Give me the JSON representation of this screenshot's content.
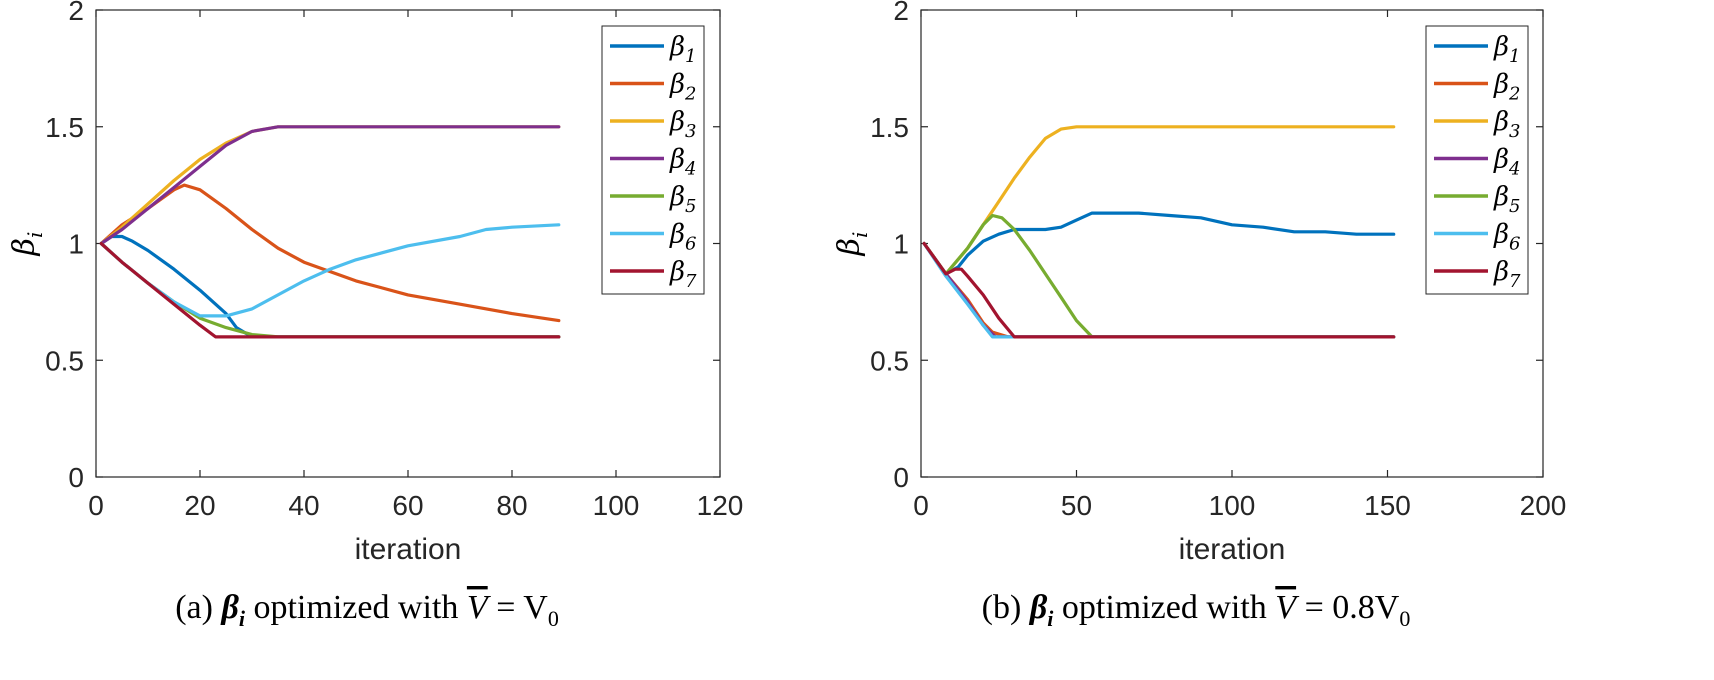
{
  "chart_data": [
    {
      "type": "line",
      "caption": {
        "prefix": "(a)",
        "symbol": "β",
        "symbol_sub": "i",
        "text": " optimized with ",
        "vbar": "V",
        "rhs": " = V",
        "rhs_sub": "0"
      },
      "xlabel": "iteration",
      "ylabel": {
        "symbol": "β",
        "sub": "i"
      },
      "xlim": [
        0,
        120
      ],
      "ylim": [
        0,
        2
      ],
      "xticks": [
        "0",
        "20",
        "40",
        "60",
        "80",
        "100",
        "120"
      ],
      "yticks": [
        "0",
        "0.5",
        "1",
        "1.5",
        "2"
      ],
      "legend_position": "top-right",
      "series": [
        {
          "name": "β1",
          "sub": "1",
          "color": "#0072BD",
          "x": [
            1,
            3,
            5,
            7,
            10,
            15,
            20,
            25,
            27,
            30,
            40,
            60,
            89
          ],
          "y": [
            1.0,
            1.03,
            1.03,
            1.01,
            0.97,
            0.89,
            0.8,
            0.7,
            0.64,
            0.6,
            0.6,
            0.6,
            0.6
          ]
        },
        {
          "name": "β2",
          "sub": "2",
          "color": "#D95319",
          "x": [
            1,
            5,
            10,
            15,
            17,
            20,
            25,
            30,
            35,
            40,
            50,
            60,
            70,
            80,
            89
          ],
          "y": [
            1.0,
            1.08,
            1.15,
            1.23,
            1.25,
            1.23,
            1.15,
            1.06,
            0.98,
            0.92,
            0.84,
            0.78,
            0.74,
            0.7,
            0.67
          ]
        },
        {
          "name": "β3",
          "sub": "3",
          "color": "#EDB120",
          "x": [
            1,
            5,
            10,
            15,
            20,
            25,
            30,
            35,
            40,
            60,
            89
          ],
          "y": [
            1.0,
            1.07,
            1.17,
            1.27,
            1.36,
            1.43,
            1.48,
            1.5,
            1.5,
            1.5,
            1.5
          ]
        },
        {
          "name": "β4",
          "sub": "4",
          "color": "#7E2F8E",
          "x": [
            1,
            5,
            10,
            15,
            20,
            25,
            30,
            35,
            40,
            60,
            89
          ],
          "y": [
            1.0,
            1.06,
            1.15,
            1.24,
            1.33,
            1.42,
            1.48,
            1.5,
            1.5,
            1.5,
            1.5
          ]
        },
        {
          "name": "β5",
          "sub": "5",
          "color": "#77AC30",
          "x": [
            1,
            5,
            10,
            15,
            20,
            25,
            30,
            35,
            40,
            60,
            89
          ],
          "y": [
            1.0,
            0.92,
            0.83,
            0.75,
            0.68,
            0.64,
            0.61,
            0.6,
            0.6,
            0.6,
            0.6
          ]
        },
        {
          "name": "β6",
          "sub": "6",
          "color": "#4DBEEE",
          "x": [
            1,
            5,
            10,
            15,
            20,
            25,
            30,
            35,
            40,
            45,
            50,
            60,
            70,
            75,
            80,
            89
          ],
          "y": [
            1.0,
            0.92,
            0.83,
            0.75,
            0.69,
            0.69,
            0.72,
            0.78,
            0.84,
            0.89,
            0.93,
            0.99,
            1.03,
            1.06,
            1.07,
            1.08
          ]
        },
        {
          "name": "β7",
          "sub": "7",
          "color": "#A2142F",
          "x": [
            1,
            5,
            10,
            15,
            20,
            23,
            25,
            40,
            60,
            89
          ],
          "y": [
            1.0,
            0.92,
            0.83,
            0.74,
            0.65,
            0.6,
            0.6,
            0.6,
            0.6,
            0.6
          ]
        }
      ]
    },
    {
      "type": "line",
      "caption": {
        "prefix": "(b)",
        "symbol": "β",
        "symbol_sub": "i",
        "text": " optimized with ",
        "vbar": "V",
        "rhs": " = 0.8V",
        "rhs_sub": "0"
      },
      "xlabel": "iteration",
      "ylabel": {
        "symbol": "β",
        "sub": "i"
      },
      "xlim": [
        0,
        200
      ],
      "ylim": [
        0,
        2
      ],
      "xticks": [
        "0",
        "50",
        "100",
        "150",
        "200"
      ],
      "yticks": [
        "0",
        "0.5",
        "1",
        "1.5",
        "2"
      ],
      "legend_position": "top-right",
      "series": [
        {
          "name": "β1",
          "sub": "1",
          "color": "#0072BD",
          "x": [
            1,
            8,
            12,
            15,
            20,
            25,
            30,
            40,
            45,
            50,
            55,
            60,
            70,
            80,
            90,
            100,
            110,
            120,
            130,
            140,
            152
          ],
          "y": [
            1.0,
            0.87,
            0.9,
            0.95,
            1.01,
            1.04,
            1.06,
            1.06,
            1.07,
            1.1,
            1.13,
            1.13,
            1.13,
            1.12,
            1.11,
            1.08,
            1.07,
            1.05,
            1.05,
            1.04,
            1.04
          ]
        },
        {
          "name": "β2",
          "sub": "2",
          "color": "#D95319",
          "x": [
            1,
            8,
            15,
            20,
            23,
            28,
            40,
            60,
            100,
            152
          ],
          "y": [
            1.0,
            0.87,
            0.76,
            0.66,
            0.62,
            0.6,
            0.6,
            0.6,
            0.6,
            0.6
          ]
        },
        {
          "name": "β3",
          "sub": "3",
          "color": "#EDB120",
          "x": [
            1,
            8,
            15,
            20,
            25,
            30,
            35,
            40,
            45,
            50,
            60,
            100,
            152
          ],
          "y": [
            1.0,
            0.87,
            0.98,
            1.08,
            1.18,
            1.28,
            1.37,
            1.45,
            1.49,
            1.5,
            1.5,
            1.5,
            1.5
          ]
        },
        {
          "name": "β4",
          "sub": "4",
          "color": "#7E2F8E",
          "x": [
            1,
            8,
            15,
            20,
            24,
            30,
            60,
            100,
            152
          ],
          "y": [
            1.0,
            0.87,
            0.75,
            0.65,
            0.6,
            0.6,
            0.6,
            0.6,
            0.6
          ]
        },
        {
          "name": "β5",
          "sub": "5",
          "color": "#77AC30",
          "x": [
            1,
            8,
            15,
            20,
            23,
            26,
            30,
            35,
            40,
            45,
            50,
            55,
            60,
            100,
            152
          ],
          "y": [
            1.0,
            0.87,
            0.98,
            1.08,
            1.12,
            1.11,
            1.06,
            0.97,
            0.87,
            0.77,
            0.67,
            0.6,
            0.6,
            0.6,
            0.6
          ]
        },
        {
          "name": "β6",
          "sub": "6",
          "color": "#4DBEEE",
          "x": [
            1,
            8,
            15,
            20,
            23,
            25,
            30,
            60,
            100,
            152
          ],
          "y": [
            1.0,
            0.86,
            0.74,
            0.65,
            0.6,
            0.6,
            0.6,
            0.6,
            0.6,
            0.6
          ]
        },
        {
          "name": "β7",
          "sub": "7",
          "color": "#A2142F",
          "x": [
            1,
            8,
            11,
            13,
            15,
            20,
            25,
            30,
            60,
            100,
            152
          ],
          "y": [
            1.0,
            0.87,
            0.89,
            0.89,
            0.86,
            0.78,
            0.68,
            0.6,
            0.6,
            0.6,
            0.6
          ]
        }
      ]
    }
  ]
}
